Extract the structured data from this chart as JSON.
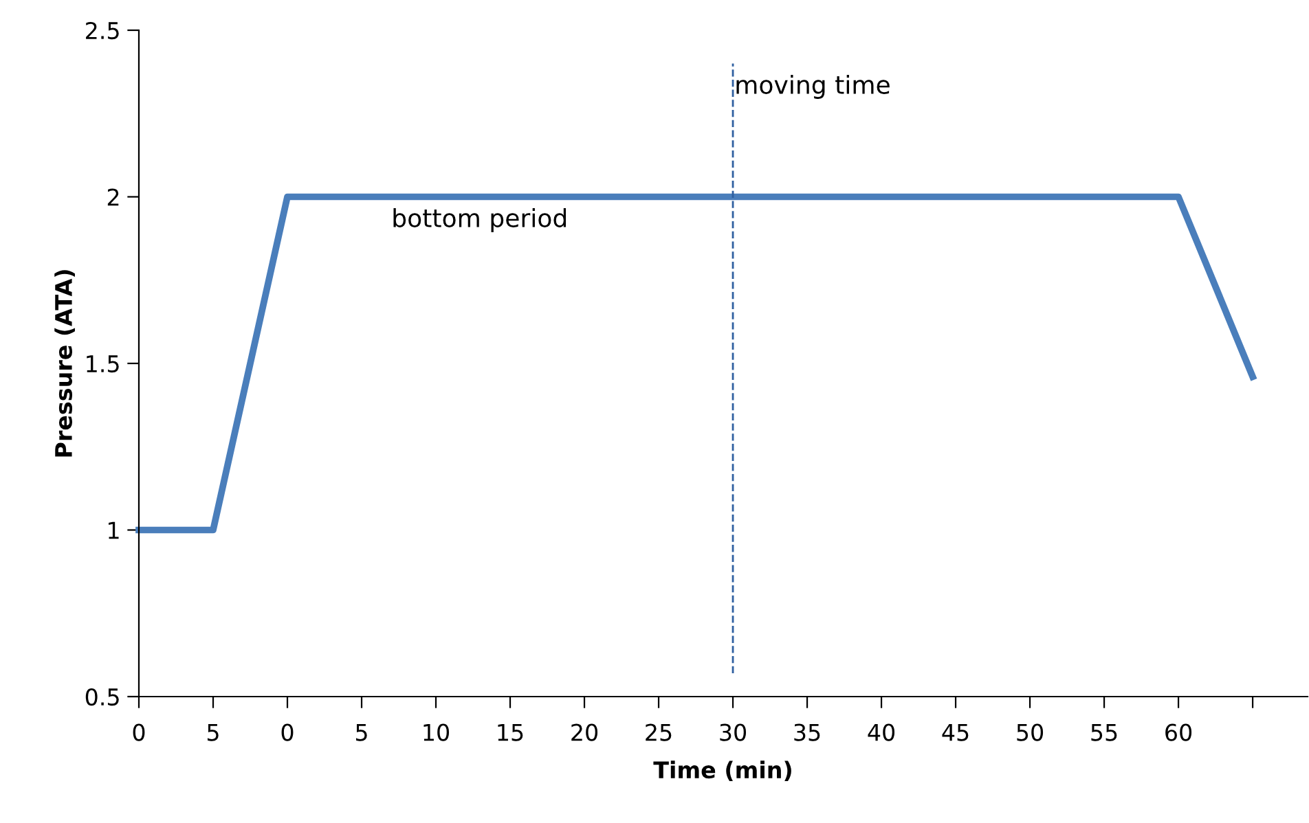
{
  "chart_data": {
    "type": "line",
    "xlabel": "Time (min)",
    "ylabel": "Pressure (ATA)",
    "categories": [
      "0",
      "5",
      "0",
      "5",
      "10",
      "15",
      "20",
      "25",
      "30",
      "35",
      "40",
      "45",
      "50",
      "55",
      "60",
      null
    ],
    "series": [
      {
        "color": "#4a7ebb",
        "values": [
          1,
          1,
          2,
          2,
          2,
          2,
          2,
          2,
          2,
          2,
          2,
          2,
          2,
          2,
          2,
          1.46
        ]
      }
    ],
    "ylim": [
      0.5,
      2.5
    ],
    "yticks": [
      0.5,
      1,
      1.5,
      2,
      2.5
    ],
    "grid": false,
    "legend": false,
    "marker": "none",
    "line_style": "solid",
    "ref_lines": [
      {
        "axis": "x",
        "value": "30",
        "label": "moving time",
        "color": "#2e5fa0",
        "line_style": "dashed"
      }
    ],
    "annotations": [
      "bottom period"
    ]
  }
}
